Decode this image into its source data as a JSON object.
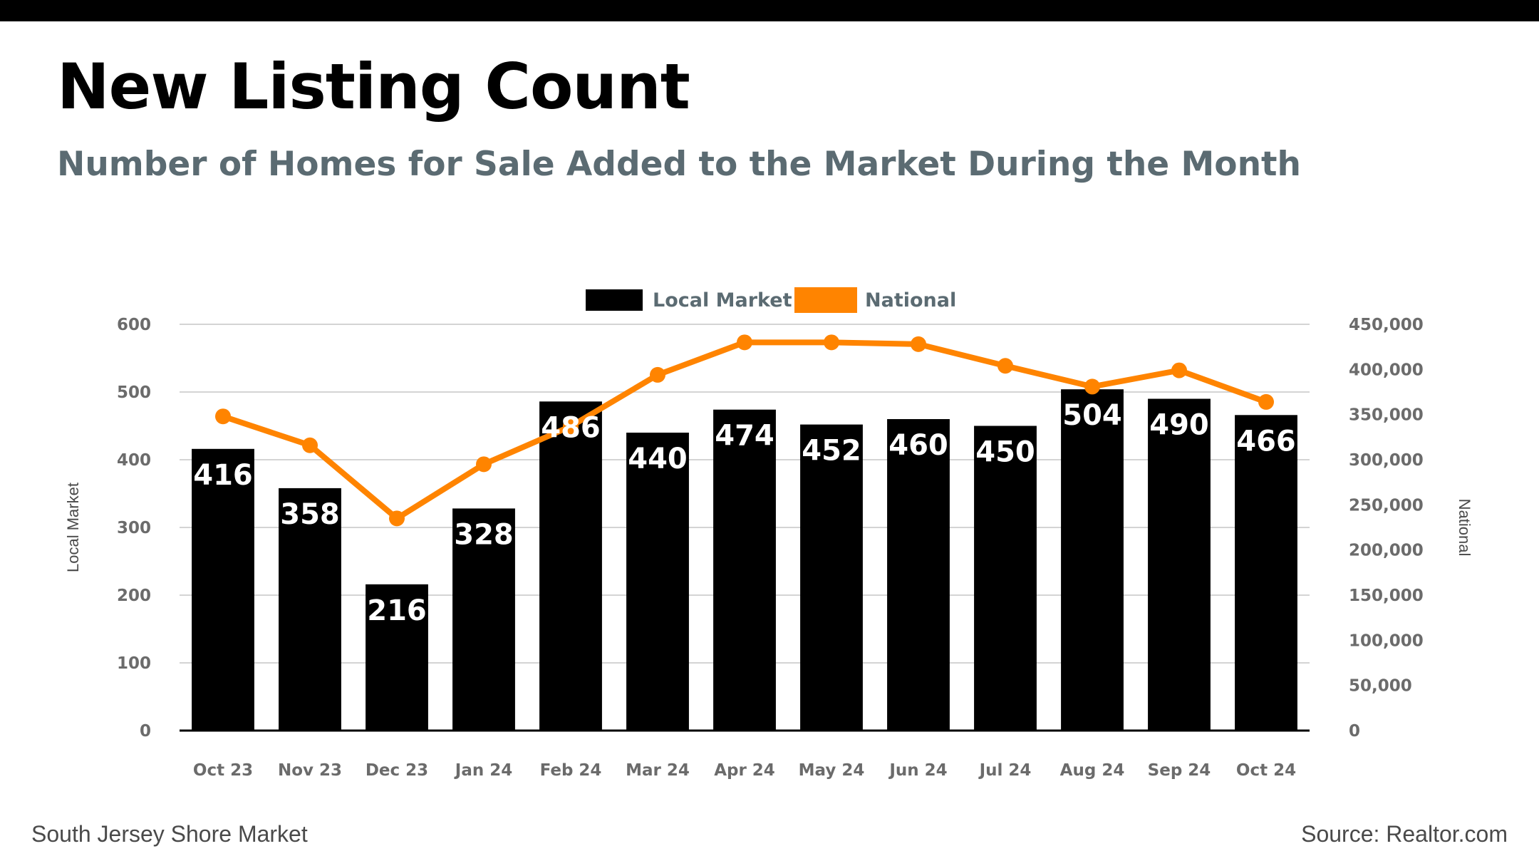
{
  "header": {
    "title": "New Listing Count",
    "subtitle": "Number of Homes for Sale Added to the Market During the Month"
  },
  "footer": {
    "left_text": "South Jersey Shore Market",
    "right_text": "Source: Realtor.com"
  },
  "colors": {
    "bar": "#000000",
    "line": "#ff8400",
    "grid": "#d4d4d4",
    "subtitle": "#5b6b72"
  },
  "chart_data": {
    "type": "bar",
    "title": "New Listing Count",
    "subtitle": "Number of Homes for Sale Added to the Market During the Month",
    "categories": [
      "Oct 23",
      "Nov 23",
      "Dec 23",
      "Jan 24",
      "Feb 24",
      "Mar 24",
      "Apr 24",
      "May 24",
      "Jun 24",
      "Jul 24",
      "Aug 24",
      "Sep 24",
      "Oct 24"
    ],
    "series": [
      {
        "name": "Local Market",
        "type": "bar",
        "axis": "left",
        "values": [
          416,
          358,
          216,
          328,
          486,
          440,
          474,
          452,
          460,
          450,
          504,
          490,
          466
        ]
      },
      {
        "name": "National",
        "type": "line",
        "axis": "right",
        "values": [
          348000,
          316000,
          235000,
          295000,
          337000,
          394000,
          430000,
          430000,
          428000,
          404000,
          381000,
          399000,
          364000
        ]
      }
    ],
    "ylabel": "Local Market",
    "ylabel_right": "National",
    "ylim": [
      0,
      600
    ],
    "ylim_right": [
      0,
      450000
    ],
    "yticks": [
      "0",
      "100",
      "200",
      "300",
      "400",
      "500",
      "600"
    ],
    "yticks_right": [
      "0",
      "50,000",
      "100,000",
      "150,000",
      "200,000",
      "250,000",
      "300,000",
      "350,000",
      "400,000",
      "450,000"
    ],
    "grid": true,
    "legend_position": "top-center"
  }
}
